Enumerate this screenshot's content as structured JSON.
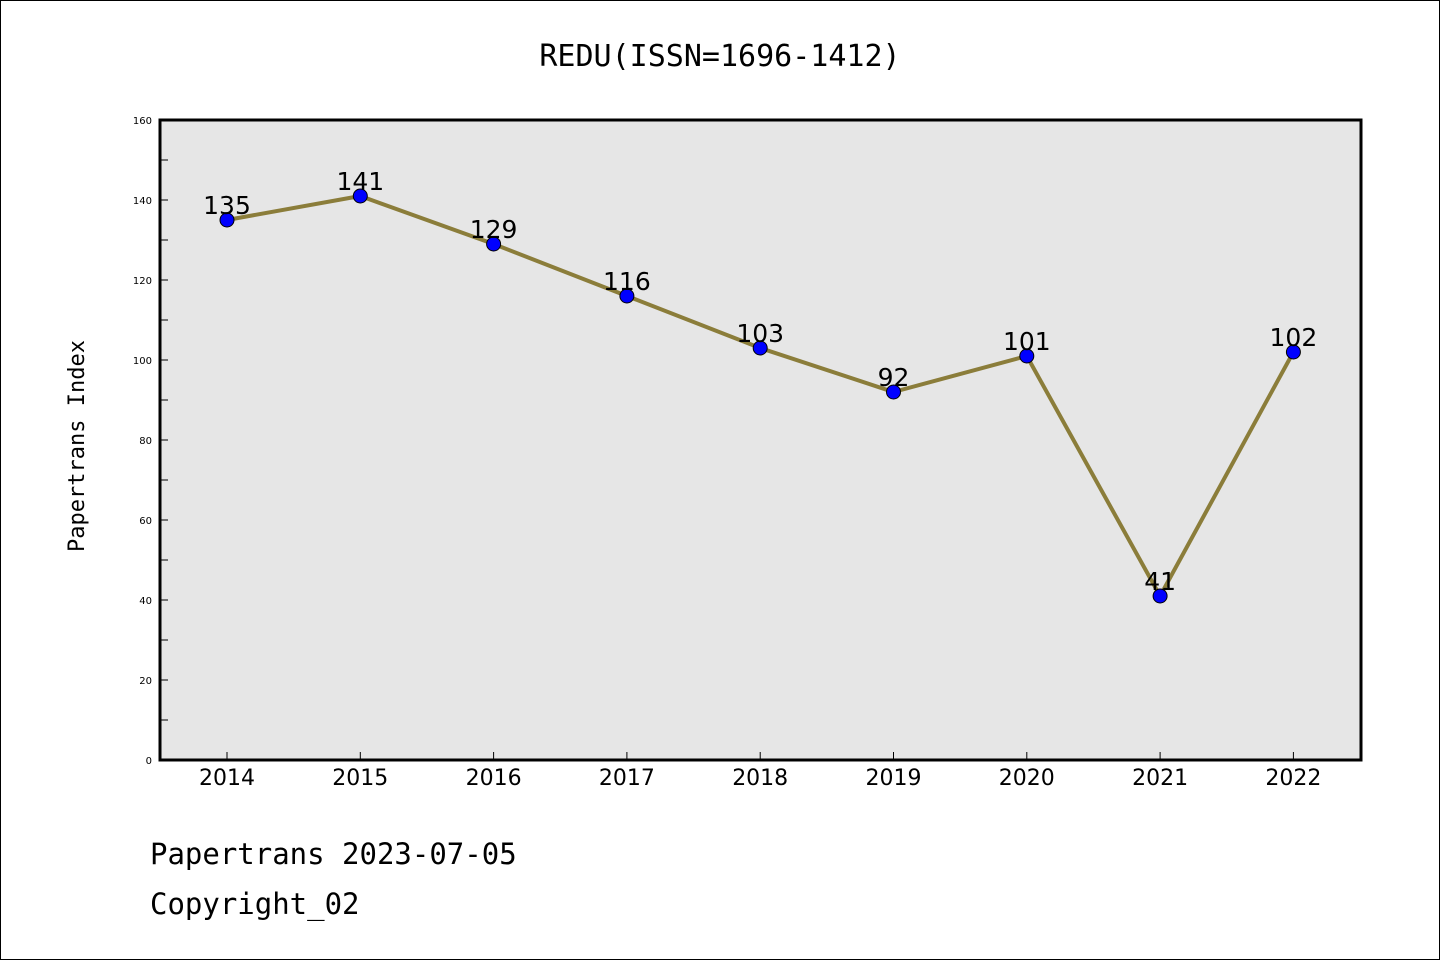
{
  "chart_data": {
    "type": "line",
    "title": "REDU(ISSN=1696-1412)",
    "xlabel": "",
    "ylabel": "Papertrans Index",
    "categories": [
      "2014",
      "2015",
      "2016",
      "2017",
      "2018",
      "2019",
      "2020",
      "2021",
      "2022"
    ],
    "series": [
      {
        "values": [
          135,
          141,
          129,
          116,
          103,
          92,
          101,
          41,
          102
        ]
      }
    ],
    "data_labels": [
      "135",
      "141",
      "129",
      "116",
      "103",
      "92",
      "101",
      "41",
      "102"
    ],
    "ylim": [
      0,
      160
    ],
    "yticks": [
      0,
      20,
      40,
      60,
      80,
      100,
      120,
      140,
      160
    ],
    "ytick_labels": [
      "0",
      "20",
      "40",
      "60",
      "80",
      "100",
      "120",
      "140",
      "160"
    ],
    "grid": false,
    "legend": "none",
    "colors": {
      "line": "#8b7d3a",
      "marker": "#0000ff",
      "plot_background": "#e6e6e6"
    }
  },
  "footer": {
    "line1": "Papertrans 2023-07-05",
    "line2": "Copyright_02"
  }
}
